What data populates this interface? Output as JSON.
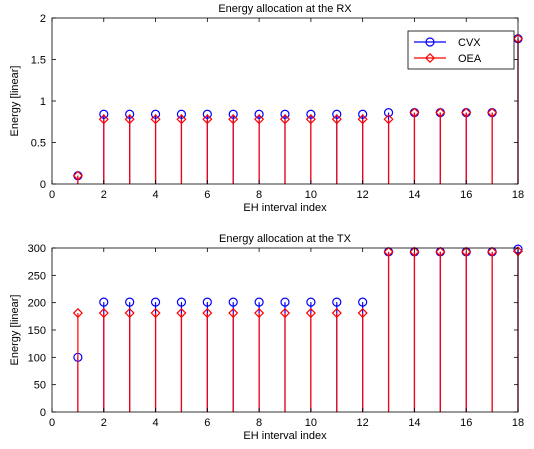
{
  "chart_data": [
    {
      "type": "stem",
      "title": "Energy allocation at the RX",
      "xlabel": "EH interval index",
      "ylabel": "Energy [linear]",
      "xlim": [
        0,
        18
      ],
      "ylim": [
        0,
        2
      ],
      "xticks": [
        0,
        2,
        4,
        6,
        8,
        10,
        12,
        14,
        16,
        18
      ],
      "yticks": [
        0,
        0.5,
        1,
        1.5,
        2
      ],
      "ytick_labels": [
        "0",
        "0.5",
        "1",
        "1.5",
        "2"
      ],
      "grid": false,
      "legend": "top-right",
      "x": [
        1,
        2,
        3,
        4,
        5,
        6,
        7,
        8,
        9,
        10,
        11,
        12,
        13,
        14,
        15,
        16,
        17,
        18
      ],
      "series": [
        {
          "name": "CVX",
          "color": "#0000ff",
          "marker": "circle",
          "values": [
            0.1,
            0.84,
            0.84,
            0.84,
            0.84,
            0.84,
            0.84,
            0.84,
            0.84,
            0.84,
            0.84,
            0.84,
            0.86,
            0.86,
            0.86,
            0.86,
            0.86,
            1.75
          ]
        },
        {
          "name": "OEA",
          "color": "#ff0000",
          "marker": "diamond",
          "values": [
            0.1,
            0.78,
            0.78,
            0.78,
            0.78,
            0.78,
            0.78,
            0.78,
            0.78,
            0.78,
            0.78,
            0.78,
            0.78,
            0.86,
            0.86,
            0.86,
            0.86,
            1.75
          ]
        }
      ]
    },
    {
      "type": "stem",
      "title": "Energy allocation at the TX",
      "xlabel": "EH interval index",
      "ylabel": "Energy [linear]",
      "xlim": [
        0,
        18
      ],
      "ylim": [
        0,
        300
      ],
      "xticks": [
        0,
        2,
        4,
        6,
        8,
        10,
        12,
        14,
        16,
        18
      ],
      "yticks": [
        0,
        50,
        100,
        150,
        200,
        250,
        300
      ],
      "ytick_labels": [
        "0",
        "50",
        "100",
        "150",
        "200",
        "250",
        "300"
      ],
      "grid": false,
      "legend": "",
      "x": [
        1,
        2,
        3,
        4,
        5,
        6,
        7,
        8,
        9,
        10,
        11,
        12,
        13,
        14,
        15,
        16,
        17,
        18
      ],
      "series": [
        {
          "name": "CVX",
          "color": "#0000ff",
          "marker": "circle",
          "values": [
            100,
            201,
            201,
            201,
            201,
            201,
            201,
            201,
            201,
            201,
            201,
            201,
            293,
            293,
            293,
            293,
            293,
            298
          ]
        },
        {
          "name": "OEA",
          "color": "#ff0000",
          "marker": "diamond",
          "values": [
            181,
            181,
            181,
            181,
            181,
            181,
            181,
            181,
            181,
            181,
            181,
            181,
            293,
            293,
            293,
            293,
            293,
            294
          ]
        }
      ]
    }
  ]
}
